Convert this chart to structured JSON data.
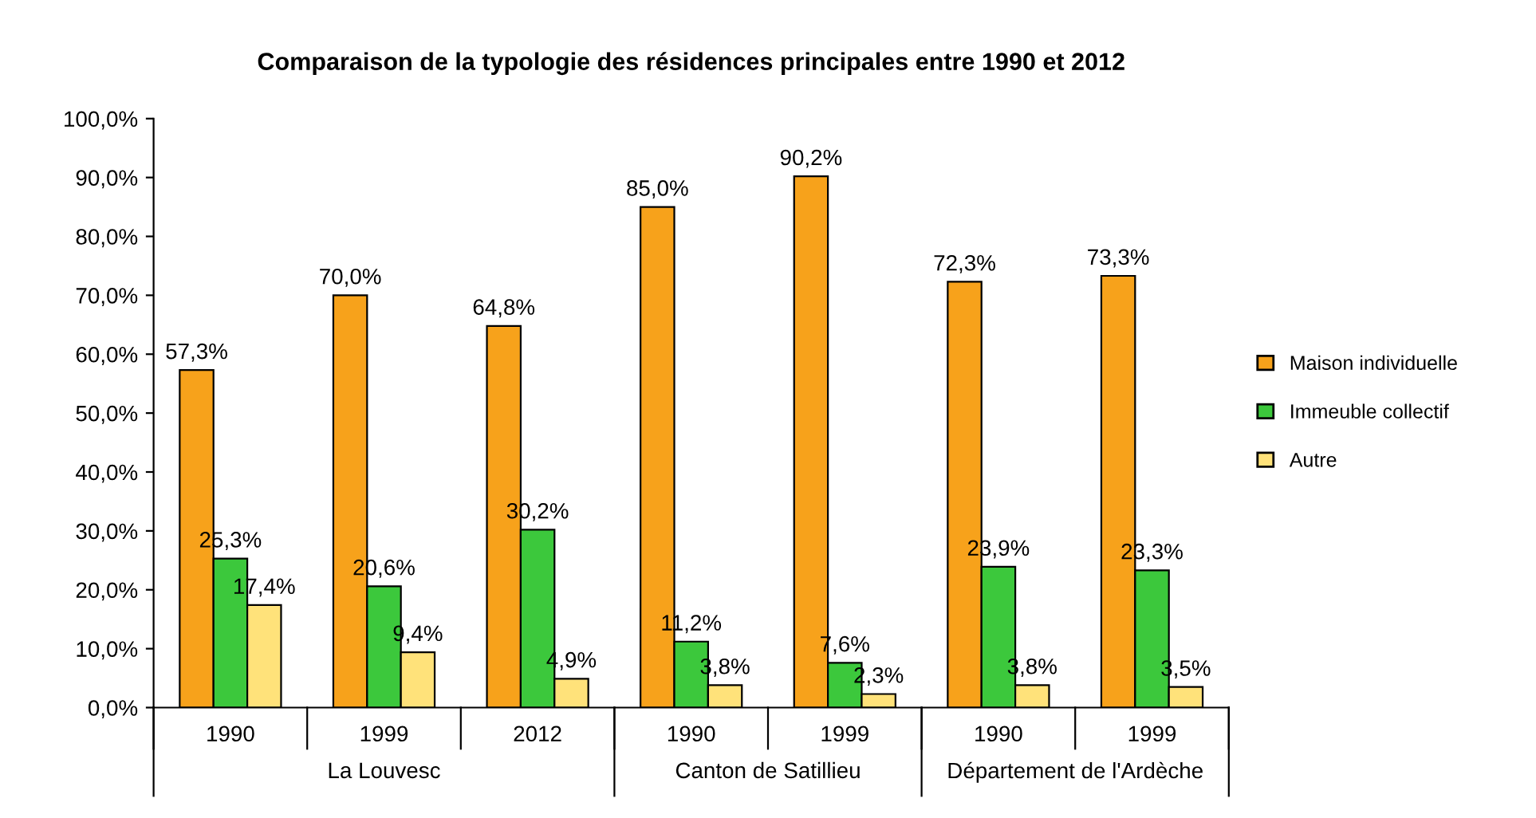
{
  "chart_data": {
    "type": "bar",
    "title": "Comparaison de la typologie des résidences principales entre 1990 et 2012",
    "categories": [
      "1990",
      "1999",
      "2012",
      "1990",
      "1999",
      "1990",
      "1999"
    ],
    "series": [
      {
        "name": "Maison individuelle",
        "color": "#f7a21b",
        "values": [
          57.3,
          70.0,
          64.8,
          85.0,
          90.2,
          72.3,
          73.3
        ],
        "value_labels": [
          "57,3%",
          "70,0%",
          "64,8%",
          "85,0%",
          "90,2%",
          "72,3%",
          "73,3%"
        ]
      },
      {
        "name": "Immeuble collectif",
        "color": "#3cc83c",
        "values": [
          25.3,
          20.6,
          30.2,
          11.2,
          7.6,
          23.9,
          23.3
        ],
        "value_labels": [
          "25,3%",
          "20,6%",
          "30,2%",
          "11,2%",
          "7,6%",
          "23,9%",
          "23,3%"
        ]
      },
      {
        "name": "Autre",
        "color": "#ffe27a",
        "values": [
          17.4,
          9.4,
          4.9,
          3.8,
          2.3,
          3.8,
          3.5
        ],
        "value_labels": [
          "17,4%",
          "9,4%",
          "4,9%",
          "3,8%",
          "2,3%",
          "3,8%",
          "3,5%"
        ]
      }
    ],
    "ylim": [
      0,
      100
    ],
    "yticks": [
      {
        "value": 0,
        "label": "0,0%"
      },
      {
        "value": 10,
        "label": "10,0%"
      },
      {
        "value": 20,
        "label": "20,0%"
      },
      {
        "value": 30,
        "label": "30,0%"
      },
      {
        "value": 40,
        "label": "40,0%"
      },
      {
        "value": 50,
        "label": "50,0%"
      },
      {
        "value": 60,
        "label": "60,0%"
      },
      {
        "value": 70,
        "label": "70,0%"
      },
      {
        "value": 80,
        "label": "80,0%"
      },
      {
        "value": 90,
        "label": "90,0%"
      },
      {
        "value": 100,
        "label": "100,0%"
      }
    ],
    "annotations": [
      "La Louvesc",
      "Canton de Satillieu",
      "Département de l'Ardèche"
    ],
    "legend": "right",
    "grid": false
  }
}
